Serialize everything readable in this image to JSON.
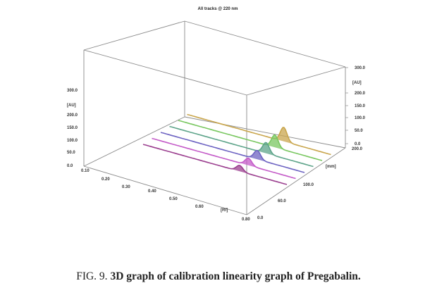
{
  "caption": {
    "prefix": "FIG. 9.",
    "text": "3D graph of calibration linearity graph of Pregabalin."
  },
  "chart_data": {
    "type": "line",
    "title": "All tracks @ 220 nm",
    "view": "3d-densitogram",
    "x_axis": {
      "label": "[Rf]",
      "ticks": [
        "0.10",
        "0.20",
        "0.30",
        "0.40",
        "0.50",
        "0.60",
        "0.80"
      ]
    },
    "y_axis": {
      "label": "[AU]",
      "ticks": [
        "0.0",
        "50.0",
        "100.0",
        "150.0",
        "200.0",
        "300.0"
      ],
      "range": [
        0,
        300
      ]
    },
    "z_axis": {
      "label": "[mm]",
      "ticks": [
        "0.0",
        "60.0",
        "100.0",
        "200.0"
      ]
    },
    "right_axis": {
      "label": "[AU]",
      "ticks": [
        "0.0",
        "50.0",
        "100.0",
        "150.0",
        "200.0",
        "300.0"
      ]
    },
    "peak_rf": 0.57,
    "series": [
      {
        "track": 1,
        "color": "#9b3f8f",
        "peak_au": 48
      },
      {
        "track": 2,
        "color": "#c45bc8",
        "peak_au": 58
      },
      {
        "track": 3,
        "color": "#6d63c2",
        "peak_au": 72
      },
      {
        "track": 4,
        "color": "#5ea48a",
        "peak_au": 88
      },
      {
        "track": 5,
        "color": "#79c760",
        "peak_au": 101
      },
      {
        "track": 6,
        "color": "#c9a64d",
        "peak_au": 115
      }
    ]
  }
}
